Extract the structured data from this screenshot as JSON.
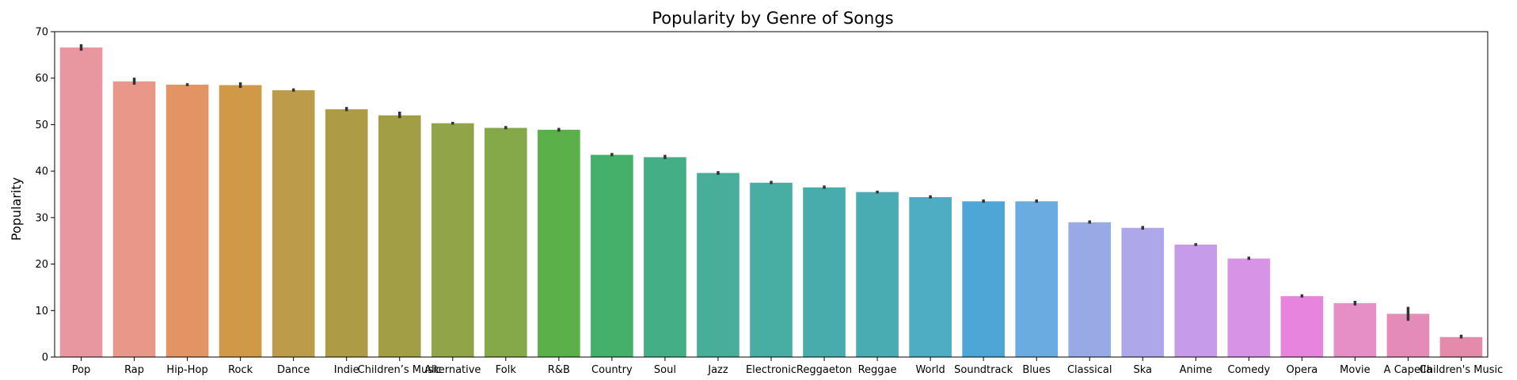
{
  "chart_data": {
    "type": "bar",
    "title": "Popularity by Genre of Songs",
    "xlabel": "",
    "ylabel": "Popularity",
    "ylim": [
      0,
      70
    ],
    "yticks": [
      0,
      10,
      20,
      30,
      40,
      50,
      60,
      70
    ],
    "grid": false,
    "categories": [
      "Pop",
      "Rap",
      "Hip-Hop",
      "Rock",
      "Dance",
      "Indie",
      "Children’s Music",
      "Alternative",
      "Folk",
      "R&B",
      "Country",
      "Soul",
      "Jazz",
      "Electronic",
      "Reggaeton",
      "Reggae",
      "World",
      "Soundtrack",
      "Blues",
      "Classical",
      "Ska",
      "Anime",
      "Comedy",
      "Opera",
      "Movie",
      "A Capella",
      "Children's Music"
    ],
    "values": [
      66.6,
      59.3,
      58.6,
      58.5,
      57.4,
      53.3,
      52.0,
      50.3,
      49.3,
      48.9,
      43.5,
      43.0,
      39.6,
      37.5,
      36.5,
      35.5,
      34.4,
      33.5,
      33.5,
      29.0,
      27.8,
      24.2,
      21.2,
      13.1,
      11.6,
      9.3,
      4.3
    ],
    "error_low": [
      65.9,
      58.6,
      58.3,
      57.9,
      57.1,
      52.9,
      51.4,
      50.0,
      49.0,
      48.5,
      43.2,
      42.6,
      39.2,
      37.2,
      36.2,
      35.2,
      34.1,
      33.2,
      33.2,
      28.7,
      27.4,
      23.9,
      20.9,
      12.8,
      11.1,
      7.8,
      4.0
    ],
    "error_high": [
      67.3,
      60.1,
      58.9,
      59.1,
      57.8,
      53.8,
      52.8,
      50.6,
      49.7,
      49.3,
      43.9,
      43.5,
      40.0,
      37.9,
      36.9,
      35.8,
      34.8,
      33.9,
      33.9,
      29.4,
      28.2,
      24.5,
      21.6,
      13.5,
      12.1,
      10.8,
      4.8
    ],
    "colors": [
      "#e8969f",
      "#e89789",
      "#e29464",
      "#cf9948",
      "#bc9b4a",
      "#ad9b46",
      "#a19e46",
      "#91a447",
      "#85a848",
      "#5bb04a",
      "#45b06a",
      "#44ae86",
      "#48ae99",
      "#48aea3",
      "#49acac",
      "#4aacb3",
      "#4eacc3",
      "#4ea6d6",
      "#6aabe0",
      "#98aae6",
      "#aea7ea",
      "#c69cea",
      "#d794e6",
      "#e784dd",
      "#e68fc7",
      "#e48bb7",
      "#e48aaa"
    ],
    "error_color": "#333333"
  }
}
